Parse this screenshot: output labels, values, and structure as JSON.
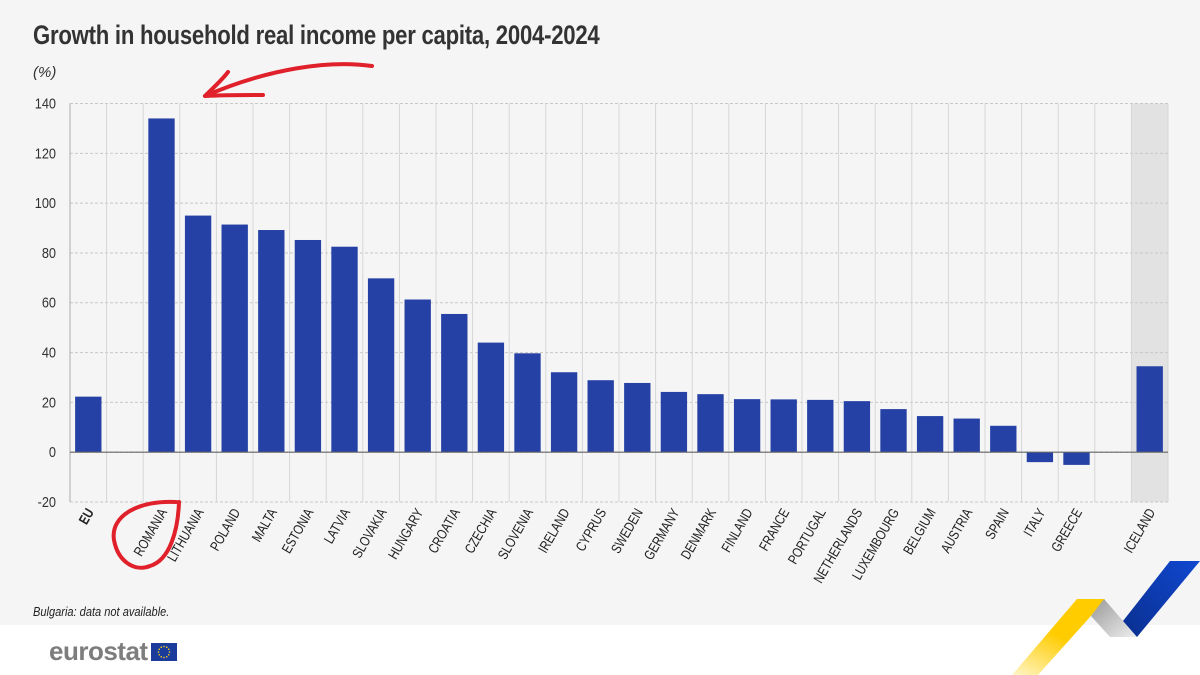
{
  "title": "Growth in household real income per capita, 2004-2024",
  "unit": "(%)",
  "note": "Bulgaria: data not available.",
  "logo": {
    "text": "eurostat",
    "flag_color": "#1a3a9c",
    "star_color": "#ffd617"
  },
  "colors": {
    "bar": "#2541a5",
    "highlight_slot": "#e2e2e2",
    "annotation": "#e0202a",
    "grid": "#c8c8c8"
  },
  "chart_data": {
    "type": "bar",
    "title": "Growth in household real income per capita, 2004-2024",
    "ylabel": "(%)",
    "ylim": [
      -20,
      140
    ],
    "yticks": [
      140,
      120,
      100,
      80,
      60,
      40,
      20,
      0,
      -20
    ],
    "grid": true,
    "categories": [
      "EU",
      "",
      "ROMANIA",
      "LITHUANIA",
      "POLAND",
      "MALTA",
      "ESTONIA",
      "LATVIA",
      "SLOVAKIA",
      "HUNGARY",
      "CROATIA",
      "CZECHIA",
      "SLOVENIA",
      "IRELAND",
      "CYPRUS",
      "SWEDEN",
      "GERMANY",
      "DENMARK",
      "FINLAND",
      "FRANCE",
      "PORTUGAL",
      "NETHERLANDS",
      "LUXEMBOURG",
      "BELGIUM",
      "AUSTRIA",
      "SPAIN",
      "ITALY",
      "GREECE",
      "",
      "ICELAND"
    ],
    "values": [
      22.3,
      null,
      134.0,
      95.0,
      91.4,
      89.2,
      85.2,
      82.5,
      69.8,
      61.3,
      55.5,
      44.0,
      39.7,
      32.1,
      28.9,
      27.8,
      24.2,
      23.3,
      21.3,
      21.2,
      21.0,
      20.5,
      17.3,
      14.5,
      13.5,
      10.6,
      -4.0,
      -5.1,
      null,
      34.5
    ],
    "bold_categories": [
      "EU"
    ],
    "highlighted_categories": [
      "ICELAND"
    ],
    "annotations": [
      "red hand-drawn arrow pointing to ROMANIA bar",
      "red hand-drawn circle around ROMANIA label"
    ]
  }
}
